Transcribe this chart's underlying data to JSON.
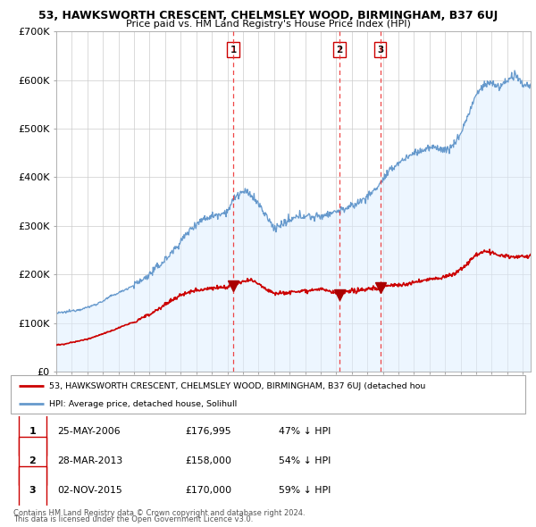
{
  "title": "53, HAWKSWORTH CRESCENT, CHELMSLEY WOOD, BIRMINGHAM, B37 6UJ",
  "subtitle": "Price paid vs. HM Land Registry's House Price Index (HPI)",
  "ylabel_ticks": [
    "£0",
    "£100K",
    "£200K",
    "£300K",
    "£400K",
    "£500K",
    "£600K",
    "£700K"
  ],
  "ylim": [
    0,
    700000
  ],
  "xlim_start": 1995.0,
  "xlim_end": 2025.5,
  "red_line_color": "#cc0000",
  "blue_line_color": "#6699cc",
  "blue_fill_color": "#ddeeff",
  "sale_marker_color": "#aa0000",
  "dashed_line_color": "#ee3333",
  "sales": [
    {
      "date_num": 2006.38,
      "price": 176995,
      "label": "1",
      "table_date": "25-MAY-2006",
      "table_price": "£176,995",
      "table_hpi": "47% ↓ HPI"
    },
    {
      "date_num": 2013.22,
      "price": 158000,
      "label": "2",
      "table_date": "28-MAR-2013",
      "table_price": "£158,000",
      "table_hpi": "54% ↓ HPI"
    },
    {
      "date_num": 2015.83,
      "price": 170000,
      "label": "3",
      "table_date": "02-NOV-2015",
      "table_price": "£170,000",
      "table_hpi": "59% ↓ HPI"
    }
  ],
  "legend_red_label": "53, HAWKSWORTH CRESCENT, CHELMSLEY WOOD, BIRMINGHAM, B37 6UJ (detached hou",
  "legend_blue_label": "HPI: Average price, detached house, Solihull",
  "footer1": "Contains HM Land Registry data © Crown copyright and database right 2024.",
  "footer2": "This data is licensed under the Open Government Licence v3.0.",
  "background_color": "#ffffff",
  "grid_color": "#cccccc",
  "blue_x_pts": [
    1995.0,
    1995.5,
    1996.0,
    1996.5,
    1997.0,
    1997.5,
    1998.0,
    1998.5,
    1999.0,
    1999.5,
    2000.0,
    2000.5,
    2001.0,
    2001.5,
    2002.0,
    2002.5,
    2003.0,
    2003.5,
    2004.0,
    2004.5,
    2005.0,
    2005.5,
    2006.0,
    2006.5,
    2007.0,
    2007.5,
    2008.0,
    2008.5,
    2009.0,
    2009.3,
    2009.7,
    2010.0,
    2010.5,
    2011.0,
    2011.5,
    2012.0,
    2012.5,
    2013.0,
    2013.5,
    2014.0,
    2014.5,
    2015.0,
    2015.5,
    2016.0,
    2016.5,
    2017.0,
    2017.5,
    2018.0,
    2018.5,
    2019.0,
    2019.5,
    2020.0,
    2020.5,
    2021.0,
    2021.5,
    2022.0,
    2022.5,
    2023.0,
    2023.5,
    2024.0,
    2024.5,
    2025.0
  ],
  "blue_y_pts": [
    120000,
    122000,
    125000,
    128000,
    132000,
    138000,
    145000,
    155000,
    162000,
    170000,
    178000,
    188000,
    200000,
    215000,
    230000,
    248000,
    268000,
    288000,
    305000,
    315000,
    320000,
    325000,
    330000,
    360000,
    370000,
    365000,
    345000,
    320000,
    295000,
    300000,
    305000,
    310000,
    318000,
    322000,
    318000,
    320000,
    325000,
    330000,
    335000,
    340000,
    350000,
    360000,
    375000,
    395000,
    415000,
    430000,
    440000,
    450000,
    455000,
    460000,
    462000,
    455000,
    465000,
    490000,
    530000,
    570000,
    590000,
    595000,
    585000,
    600000,
    610000,
    590000
  ],
  "red_x_pts": [
    1995.0,
    1995.5,
    1996.0,
    1996.5,
    1997.0,
    1997.5,
    1998.0,
    1998.5,
    1999.0,
    1999.5,
    2000.0,
    2000.5,
    2001.0,
    2001.5,
    2002.0,
    2002.5,
    2003.0,
    2003.5,
    2004.0,
    2004.5,
    2005.0,
    2005.5,
    2006.0,
    2006.38,
    2006.8,
    2007.0,
    2007.5,
    2008.0,
    2008.5,
    2009.0,
    2009.5,
    2010.0,
    2010.5,
    2011.0,
    2011.5,
    2012.0,
    2012.5,
    2013.0,
    2013.22,
    2013.5,
    2014.0,
    2014.5,
    2015.0,
    2015.5,
    2015.83,
    2016.0,
    2016.5,
    2017.0,
    2017.5,
    2018.0,
    2018.5,
    2019.0,
    2019.5,
    2020.0,
    2020.5,
    2021.0,
    2021.5,
    2022.0,
    2022.5,
    2023.0,
    2023.5,
    2024.0,
    2024.5,
    2025.0
  ],
  "red_y_pts": [
    55000,
    56000,
    60000,
    63000,
    67000,
    72000,
    78000,
    83000,
    90000,
    96000,
    102000,
    110000,
    118000,
    128000,
    138000,
    148000,
    157000,
    163000,
    168000,
    170000,
    172000,
    173000,
    174000,
    176995,
    182000,
    185000,
    188000,
    182000,
    170000,
    162000,
    162000,
    163000,
    165000,
    167000,
    168000,
    170000,
    165000,
    162000,
    158000,
    162000,
    165000,
    168000,
    170000,
    172000,
    170000,
    175000,
    178000,
    178000,
    180000,
    183000,
    187000,
    190000,
    192000,
    195000,
    200000,
    210000,
    225000,
    240000,
    248000,
    245000,
    238000,
    238000,
    235000,
    237000
  ]
}
